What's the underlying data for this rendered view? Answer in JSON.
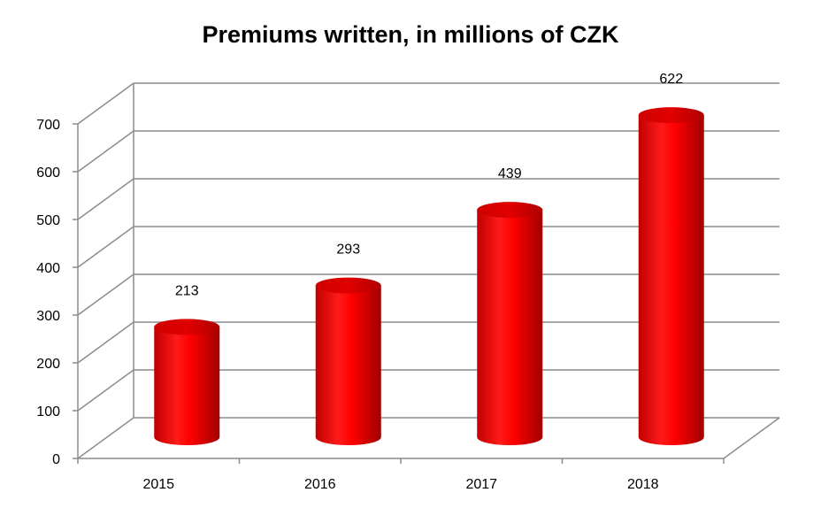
{
  "chart_data": {
    "type": "bar",
    "style": "3d-cylinder",
    "title": "Premiums written, in millions of CZK",
    "xlabel": "",
    "ylabel": "",
    "categories": [
      "2015",
      "2016",
      "2017",
      "2018"
    ],
    "values": [
      213,
      293,
      439,
      622
    ],
    "data_labels": [
      "213",
      "293",
      "439",
      "622"
    ],
    "ylim": [
      0,
      700
    ],
    "yticks": [
      0,
      100,
      200,
      300,
      400,
      500,
      600,
      700
    ],
    "grid": true,
    "legend": "none",
    "colors": {
      "bar": "#ff0000",
      "bar_dark": "#c00000",
      "grid": "#8c8c8c"
    }
  }
}
